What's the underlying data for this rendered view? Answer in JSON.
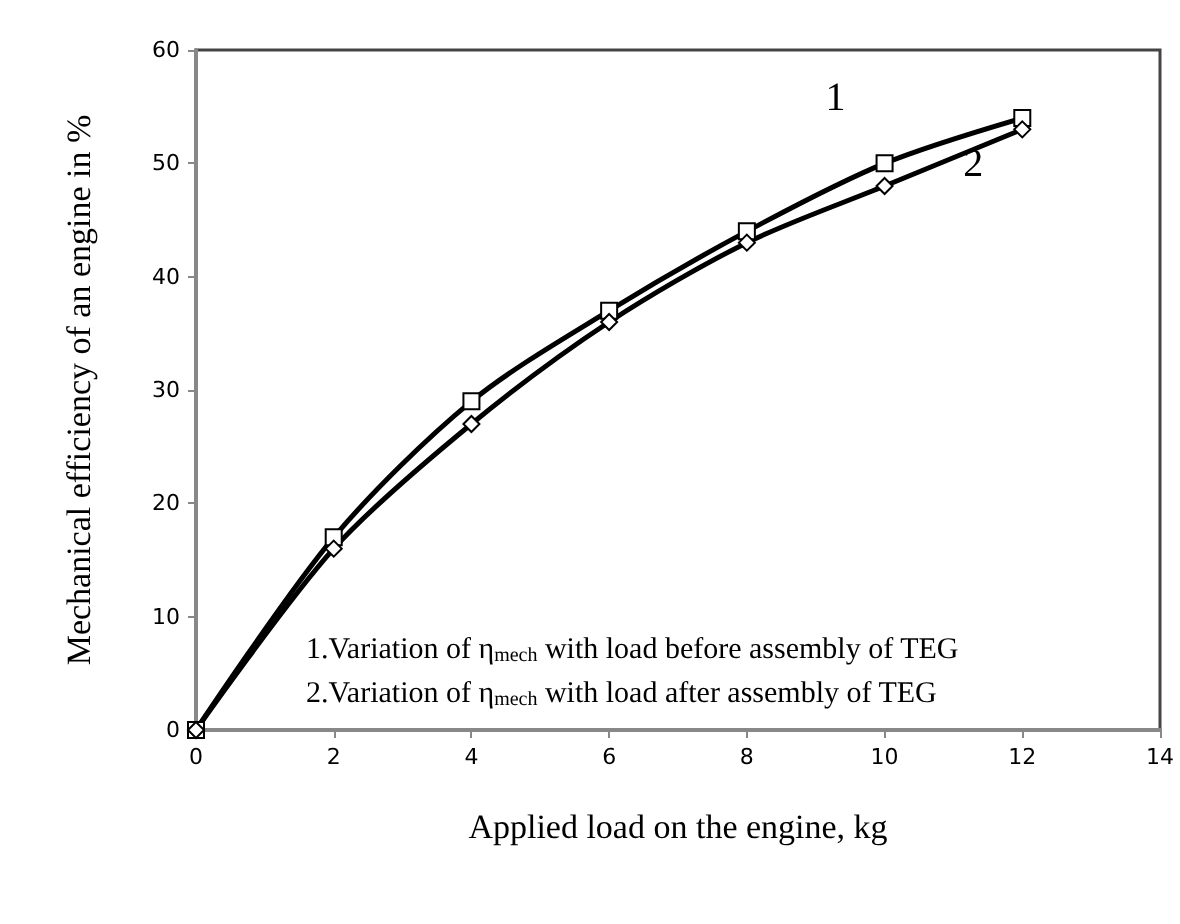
{
  "chart_data": {
    "type": "line",
    "xlabel": "Applied load on the engine, kg",
    "ylabel": "Mechanical efficiency of an engine in %",
    "x": [
      0,
      2,
      4,
      6,
      8,
      10,
      12
    ],
    "series": [
      {
        "name": "1",
        "color": "#000000",
        "marker": "square",
        "values": [
          0,
          17,
          29,
          37,
          44,
          50,
          54
        ]
      },
      {
        "name": "2",
        "color": "#000000",
        "marker": "diamond",
        "values": [
          0,
          16,
          27,
          36,
          43,
          48,
          53
        ]
      }
    ],
    "xlim": [
      0,
      14
    ],
    "xticks": [
      0,
      2,
      4,
      6,
      8,
      10,
      12,
      14
    ],
    "ylim": [
      0,
      60
    ],
    "yticks": [
      0,
      10,
      20,
      30,
      40,
      50,
      60
    ],
    "grid": false,
    "line_style": "solid",
    "annotations": [
      "1.Variation of η$_{mech}$ with load before assembly of TEG",
      "2.Variation of η$_{mech}$ with load after assembly of TEG"
    ]
  }
}
